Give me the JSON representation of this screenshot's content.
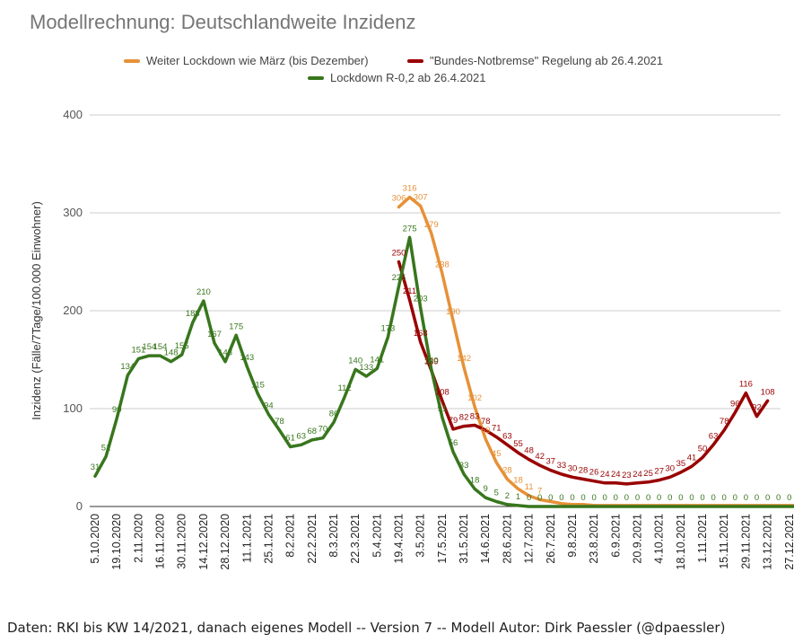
{
  "title": "Modellrechnung: Deutschlandweite Inzidenz",
  "footer": "Daten: RKI bis KW 14/2021, danach eigenes Modell -- Version 7 -- Modell Autor: Dirk Paessler (@dpaessler)",
  "chart_data": {
    "type": "line",
    "title": "Modellrechnung: Deutschlandweite Inzidenz",
    "ylabel": "Inzidenz (Fälle/7Tage/100.000 Einwohner)",
    "xlabel": "",
    "ylim": [
      0,
      400
    ],
    "yticks": [
      "0",
      "100",
      "200",
      "300",
      "400"
    ],
    "grid": true,
    "legend_position": "top",
    "xtick_labels": [
      "5.10.2020",
      "19.10.2020",
      "2.11.2020",
      "16.11.2020",
      "30.11.2020",
      "14.12.2020",
      "28.12.2020",
      "11.1.2021",
      "25.1.2021",
      "8.2.2021",
      "22.2.2021",
      "8.3.2021",
      "22.3.2021",
      "5.4.2021",
      "19.4.2021",
      "3.5.2021",
      "17.5.2021",
      "31.5.2021",
      "14.6.2021",
      "28.6.2021",
      "12.7.2021",
      "26.7.2021",
      "9.8.2021",
      "23.8.2021",
      "6.9.2021",
      "20.9.2021",
      "4.10.2021",
      "18.10.2021",
      "1.11.2021",
      "15.11.2021",
      "29.11.2021",
      "13.12.2021",
      "27.12.2021"
    ],
    "series": [
      {
        "name": "Weiter Lockdown wie März (bis Dezember)",
        "color": "#e69138",
        "start_week": 28,
        "values": [
          306,
          316,
          307,
          279,
          238,
          190,
          142,
          102,
          69,
          45,
          28,
          18,
          11,
          7,
          5,
          3,
          2,
          2,
          1,
          1,
          1,
          1,
          1,
          1,
          1,
          1,
          1,
          1,
          1,
          1,
          1,
          1,
          1,
          1,
          1,
          1,
          1,
          1,
          1
        ],
        "labels": [
          "306",
          "316",
          "307",
          "279",
          "238",
          "190",
          "142",
          "102",
          "69",
          "45",
          "28",
          "18",
          "11",
          "7"
        ]
      },
      {
        "name": "\"Bundes-Notbremse\" Regelung ab 26.4.2021",
        "color": "#990000",
        "start_week": 28,
        "values": [
          250,
          211,
          168,
          139,
          108,
          79,
          82,
          83,
          78,
          71,
          63,
          55,
          48,
          42,
          37,
          33,
          30,
          28,
          26,
          24,
          24,
          23,
          24,
          25,
          27,
          30,
          35,
          41,
          50,
          63,
          78,
          96,
          116,
          92,
          108
        ],
        "labels": [
          "250",
          "211",
          "168",
          "139",
          "108",
          "79",
          "82",
          "83",
          "78",
          "71",
          "63",
          "55",
          "48",
          "42",
          "37",
          "33",
          "30",
          "28",
          "26",
          "24",
          "24",
          "23",
          "24",
          "25",
          "27",
          "30",
          "35",
          "41",
          "50",
          "63",
          "78",
          "96",
          "116",
          "92",
          "108"
        ]
      },
      {
        "name": "Lockdown R-0,2 ab 26.4.2021",
        "color": "#38761d",
        "start_week": 0,
        "values": [
          31,
          51,
          90,
          134,
          151,
          154,
          154,
          148,
          155,
          188,
          210,
          167,
          148,
          175,
          143,
          115,
          94,
          78,
          61,
          63,
          68,
          70,
          86,
          112,
          140,
          133,
          141,
          173,
          225,
          275,
          203,
          140,
          91,
          56,
          33,
          18,
          9,
          5,
          2,
          1,
          0,
          0,
          0,
          0,
          0,
          0,
          0,
          0,
          0,
          0,
          0,
          0,
          0,
          0,
          0,
          0,
          0,
          0,
          0,
          0,
          0,
          0,
          0,
          0,
          0,
          0
        ],
        "labels": [
          "31",
          "51",
          "90",
          "134",
          "151",
          "154",
          "154",
          "148",
          "155",
          "188",
          "210",
          "167",
          "148",
          "175",
          "143",
          "115",
          "94",
          "78",
          "61",
          "63",
          "68",
          "70",
          "86",
          "112",
          "140",
          "133",
          "141",
          "173",
          "225",
          "275",
          "203",
          "140",
          "91",
          "56",
          "33",
          "18",
          "9",
          "5",
          "2",
          "1",
          "0",
          "0",
          "0",
          "0",
          "0",
          "0",
          "0",
          "0",
          "0",
          "0",
          "0",
          "0",
          "0",
          "0",
          "0",
          "0",
          "0",
          "0",
          "0",
          "0",
          "0",
          "0",
          "0",
          "0",
          "0",
          "0"
        ]
      }
    ]
  }
}
